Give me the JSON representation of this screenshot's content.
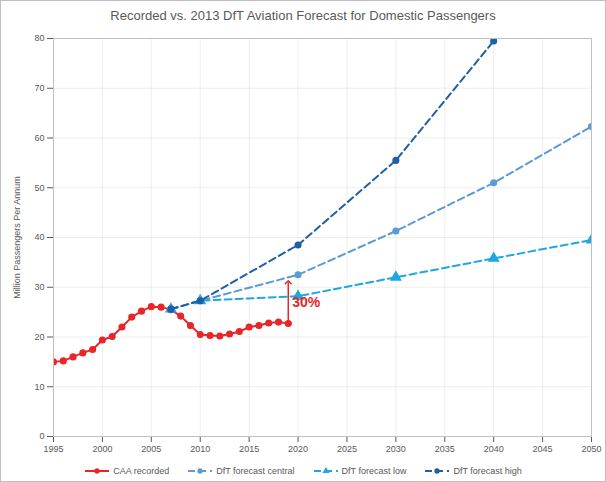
{
  "chart_data": {
    "type": "line",
    "title": "Recorded vs. 2013 DfT Aviation Forecast for Domestic Passengers",
    "y_label": "Million Passengers Per Annum",
    "xlim": [
      1995,
      2050
    ],
    "xticks": [
      1995,
      2000,
      2005,
      2010,
      2015,
      2020,
      2025,
      2030,
      2035,
      2040,
      2045,
      2050
    ],
    "ylim": [
      0,
      80
    ],
    "yticks": [
      0,
      10,
      20,
      30,
      40,
      50,
      60,
      70,
      80
    ],
    "grid": true,
    "legend": "bottom",
    "series": [
      {
        "name": "CAA recorded",
        "color": "#e8262a",
        "marker": "circle",
        "line_style": "solid",
        "x": [
          1995,
          1996,
          1997,
          1998,
          1999,
          2000,
          2001,
          2002,
          2003,
          2004,
          2005,
          2006,
          2007,
          2008,
          2009,
          2010,
          2011,
          2012,
          2013,
          2014,
          2015,
          2016,
          2017,
          2018,
          2019
        ],
        "values": [
          15.0,
          15.2,
          16.0,
          16.8,
          17.5,
          19.4,
          20.1,
          22.0,
          24.0,
          25.2,
          26.1,
          26.0,
          25.5,
          24.2,
          22.3,
          20.5,
          20.3,
          20.2,
          20.6,
          21.1,
          22.0,
          22.3,
          22.8,
          23.0,
          22.7
        ]
      },
      {
        "name": "DfT forecast central",
        "color": "#5b9bd5",
        "marker": "circle",
        "line_style": "dashed",
        "x": [
          2007,
          2010,
          2020,
          2030,
          2040,
          2050
        ],
        "values": [
          25.6,
          27.3,
          32.5,
          41.3,
          51.0,
          62.3
        ]
      },
      {
        "name": "DfT forecast low",
        "color": "#1fa8e0",
        "marker": "triangle",
        "line_style": "dashed",
        "x": [
          2007,
          2010,
          2020,
          2030,
          2040,
          2050
        ],
        "values": [
          25.6,
          27.3,
          28.2,
          32.0,
          35.8,
          39.5
        ]
      },
      {
        "name": "DfT forecast high",
        "color": "#1f5fa6",
        "marker": "circle",
        "line_style": "dashed",
        "x": [
          2007,
          2010,
          2020,
          2030,
          2040
        ],
        "values": [
          25.6,
          27.3,
          38.5,
          55.5,
          79.5
        ]
      }
    ],
    "annotations": [
      {
        "text": "30%",
        "x": 2019,
        "y": [
          23,
          31
        ],
        "color": "#e8262a"
      }
    ]
  }
}
